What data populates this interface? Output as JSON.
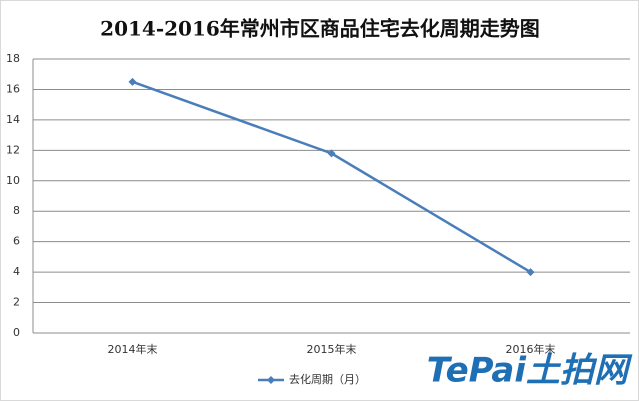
{
  "chart_data": {
    "type": "line",
    "title": "2014-2016年常州市区商品住宅去化周期走势图",
    "categories": [
      "2014年末",
      "2015年末",
      "2016年末"
    ],
    "series": [
      {
        "name": "去化周期（月）",
        "color": "#4a7ebb",
        "values": [
          16.5,
          11.8,
          4.0
        ]
      }
    ],
    "ylim": [
      0,
      18
    ],
    "yticks": [
      0,
      2,
      4,
      6,
      8,
      10,
      12,
      14,
      16,
      18
    ],
    "grid": true,
    "legend": "bottom",
    "watermark": "TePai土拍网"
  }
}
